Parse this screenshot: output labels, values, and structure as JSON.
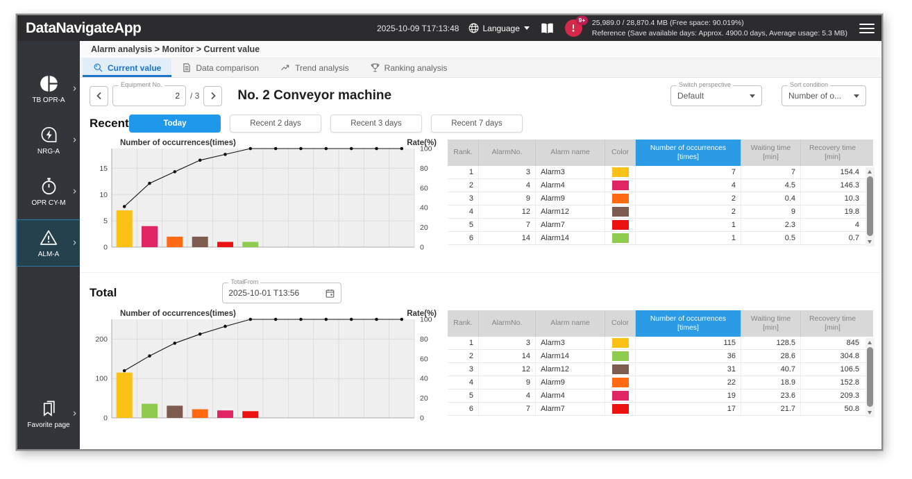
{
  "topbar": {
    "app_title": "DataNavigateApp",
    "timestamp": "2025-10-09 T17:13:48",
    "language_label": "Language",
    "alert_badge": "9+",
    "memory_line1": "25,989.0 / 28,870.4 MB (Free space: 90.019%)",
    "memory_line2": "Reference (Save available days: Approx. 4900.0 days, Average usage: 5.3 MB)"
  },
  "sidebar": {
    "items": [
      {
        "label": "TB OPR-A",
        "icon": "pie-chart-icon",
        "active": false
      },
      {
        "label": "NRG-A",
        "icon": "energy-icon",
        "active": false
      },
      {
        "label": "OPR CY-M",
        "icon": "stopwatch-icon",
        "active": false
      },
      {
        "label": "ALM-A",
        "icon": "alarm-warning-icon",
        "active": true
      }
    ],
    "favorite": {
      "label": "Favorite page",
      "icon": "bookmark-icon"
    }
  },
  "breadcrumb": "Alarm analysis > Monitor > Current value",
  "tabs": [
    {
      "label": "Current value",
      "icon": "magnifier-icon",
      "active": true
    },
    {
      "label": "Data comparison",
      "icon": "document-icon",
      "active": false
    },
    {
      "label": "Trend analysis",
      "icon": "trend-icon",
      "active": false
    },
    {
      "label": "Ranking analysis",
      "icon": "trophy-icon",
      "active": false
    }
  ],
  "equipment": {
    "field_label": "Equipment No.",
    "value": "2",
    "total": "/ 3",
    "title": "No. 2 Conveyor machine"
  },
  "perspective": {
    "label": "Switch perspective",
    "value": "Default"
  },
  "sort": {
    "label": "Sort condition",
    "value": "Number of o..."
  },
  "recent": {
    "label": "Recent",
    "buttons": [
      {
        "label": "Today",
        "active": true
      },
      {
        "label": "Recent 2 days",
        "active": false
      },
      {
        "label": "Recent 3 days",
        "active": false
      },
      {
        "label": "Recent 7 days",
        "active": false
      }
    ]
  },
  "total": {
    "label": "Total",
    "from_label": "TotalFrom",
    "from_value": "2025-10-01 T13:56"
  },
  "table_headers": [
    "Rank.",
    "AlarmNo.",
    "Alarm name",
    "Color",
    "Number of occurrences\n[times]",
    "Waiting time\n[min]",
    "Recovery time\n[min]"
  ],
  "tables": {
    "recent": {
      "rows": [
        {
          "rank": "1",
          "alarm_no": "3",
          "name": "Alarm3",
          "color": "#FBC116",
          "occurrences": "7",
          "waiting": "7",
          "recovery": "154.4"
        },
        {
          "rank": "2",
          "alarm_no": "4",
          "name": "Alarm4",
          "color": "#E02565",
          "occurrences": "4",
          "waiting": "4.5",
          "recovery": "146.3"
        },
        {
          "rank": "3",
          "alarm_no": "9",
          "name": "Alarm9",
          "color": "#FF6A13",
          "occurrences": "2",
          "waiting": "0.4",
          "recovery": "10.3"
        },
        {
          "rank": "4",
          "alarm_no": "12",
          "name": "Alarm12",
          "color": "#7D5B4F",
          "occurrences": "2",
          "waiting": "9",
          "recovery": "19.8"
        },
        {
          "rank": "5",
          "alarm_no": "7",
          "name": "Alarm7",
          "color": "#ED1212",
          "occurrences": "1",
          "waiting": "2.3",
          "recovery": "4"
        },
        {
          "rank": "6",
          "alarm_no": "14",
          "name": "Alarm14",
          "color": "#8FCB4E",
          "occurrences": "1",
          "waiting": "0.5",
          "recovery": "0.7"
        }
      ]
    },
    "total": {
      "rows": [
        {
          "rank": "1",
          "alarm_no": "3",
          "name": "Alarm3",
          "color": "#FBC116",
          "occurrences": "115",
          "waiting": "128.5",
          "recovery": "845"
        },
        {
          "rank": "2",
          "alarm_no": "14",
          "name": "Alarm14",
          "color": "#8FCB4E",
          "occurrences": "36",
          "waiting": "28.6",
          "recovery": "304.8"
        },
        {
          "rank": "3",
          "alarm_no": "12",
          "name": "Alarm12",
          "color": "#7D5B4F",
          "occurrences": "31",
          "waiting": "40.7",
          "recovery": "106.5"
        },
        {
          "rank": "4",
          "alarm_no": "9",
          "name": "Alarm9",
          "color": "#FF6A13",
          "occurrences": "22",
          "waiting": "18.9",
          "recovery": "152.8"
        },
        {
          "rank": "5",
          "alarm_no": "4",
          "name": "Alarm4",
          "color": "#E02565",
          "occurrences": "19",
          "waiting": "23.6",
          "recovery": "209.3"
        },
        {
          "rank": "6",
          "alarm_no": "7",
          "name": "Alarm7",
          "color": "#ED1212",
          "occurrences": "17",
          "waiting": "21.7",
          "recovery": "50.8"
        }
      ]
    }
  },
  "colors": {
    "accent_blue": "#1f97ea",
    "table_header_highlight": "#2b9be5",
    "topbar_bg": "#2c2c2f",
    "sidebar_bg": "#323539",
    "alert_red": "#d5294a",
    "chart_plot_bg": "#efefef"
  },
  "chart_data": [
    {
      "id": "recent",
      "type": "bar",
      "subtype": "pareto-bar-with-cumulative-line",
      "title": "Number of occurrences(times)",
      "right_axis_label": "Rate(%)",
      "slots": 12,
      "left_ticks": [
        0,
        5,
        10,
        15
      ],
      "left_axis_max": 18.75,
      "right_ticks": [
        0,
        20,
        40,
        60,
        80,
        100
      ],
      "right_axis_max": 100,
      "categories": [
        "Alarm3",
        "Alarm4",
        "Alarm9",
        "Alarm12",
        "Alarm7",
        "Alarm14"
      ],
      "bar_values": [
        7,
        4,
        2,
        2,
        1,
        1
      ],
      "bar_colors": [
        "#FBC116",
        "#E02565",
        "#FF6A13",
        "#7D5B4F",
        "#ED1212",
        "#8FCB4E"
      ],
      "cumulative_rate_pct": [
        41.2,
        64.7,
        76.5,
        88.2,
        94.1,
        100,
        100,
        100,
        100,
        100,
        100,
        100
      ]
    },
    {
      "id": "total",
      "type": "bar",
      "subtype": "pareto-bar-with-cumulative-line",
      "title": "Number of occurrences(times)",
      "right_axis_label": "Rate(%)",
      "slots": 12,
      "left_ticks": [
        0,
        100,
        200
      ],
      "left_axis_max": 250,
      "right_ticks": [
        0,
        20,
        40,
        60,
        80,
        100
      ],
      "right_axis_max": 100,
      "categories": [
        "Alarm3",
        "Alarm14",
        "Alarm12",
        "Alarm9",
        "Alarm4",
        "Alarm7"
      ],
      "bar_values": [
        115,
        36,
        31,
        22,
        19,
        17
      ],
      "bar_colors": [
        "#FBC116",
        "#8FCB4E",
        "#7D5B4F",
        "#FF6A13",
        "#E02565",
        "#ED1212"
      ],
      "cumulative_rate_pct": [
        47.9,
        62.9,
        75.8,
        85.0,
        92.9,
        100,
        100,
        100,
        100,
        100,
        100,
        100
      ]
    }
  ]
}
